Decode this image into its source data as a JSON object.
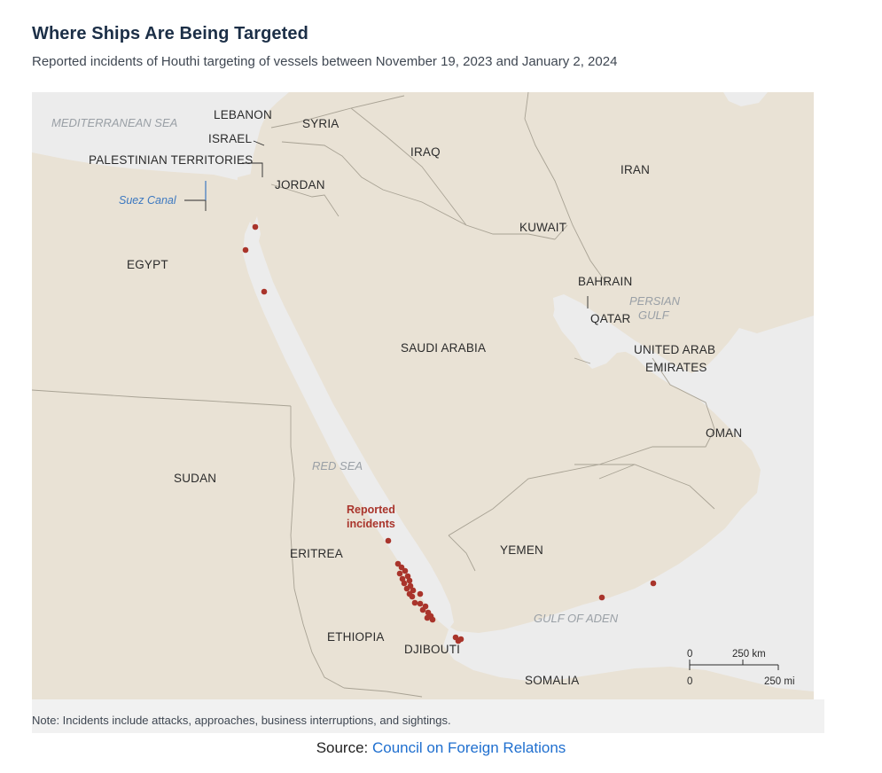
{
  "header": {
    "title": "Where Ships Are Being Targeted",
    "subtitle": "Reported incidents of Houthi targeting of vessels between November 19, 2023 and January 2, 2024"
  },
  "map": {
    "countries": {
      "lebanon": "LEBANON",
      "syria": "SYRIA",
      "israel": "ISRAEL",
      "palestine": "PALESTINIAN TERRITORIES",
      "iraq": "IRAQ",
      "iran": "IRAN",
      "jordan": "JORDAN",
      "kuwait": "KUWAIT",
      "egypt": "EGYPT",
      "bahrain": "BAHRAIN",
      "qatar": "QATAR",
      "saudi": "SAUDI ARABIA",
      "uae_line1": "UNITED ARAB",
      "uae_line2": "EMIRATES",
      "oman": "OMAN",
      "sudan": "SUDAN",
      "eritrea": "ERITREA",
      "yemen": "YEMEN",
      "ethiopia": "ETHIOPIA",
      "djibouti": "DJIBOUTI",
      "somalia": "SOMALIA"
    },
    "waters": {
      "mediterranean": "MEDITERRANEAN SEA",
      "persian_line1": "PERSIAN",
      "persian_line2": "GULF",
      "red_sea": "RED SEA",
      "gulf_of_aden": "GULF OF ADEN"
    },
    "features": {
      "suez_canal": "Suez Canal"
    },
    "incidents_label_line1": "Reported",
    "incidents_label_line2": "incidents",
    "incident_count": 31,
    "scale": {
      "km_zero": "0",
      "km_label": "250 km",
      "mi_zero": "0",
      "mi_label": "250 mi"
    },
    "colors": {
      "land": "#e9e2d5",
      "water": "#ececec",
      "incident": "#a9342b",
      "border": "#a8a294"
    }
  },
  "footer": {
    "note": "Note: Incidents include attacks, approaches, business interruptions, and sightings.",
    "source_prefix": "Source: ",
    "source_link": "Council on Foreign Relations"
  }
}
